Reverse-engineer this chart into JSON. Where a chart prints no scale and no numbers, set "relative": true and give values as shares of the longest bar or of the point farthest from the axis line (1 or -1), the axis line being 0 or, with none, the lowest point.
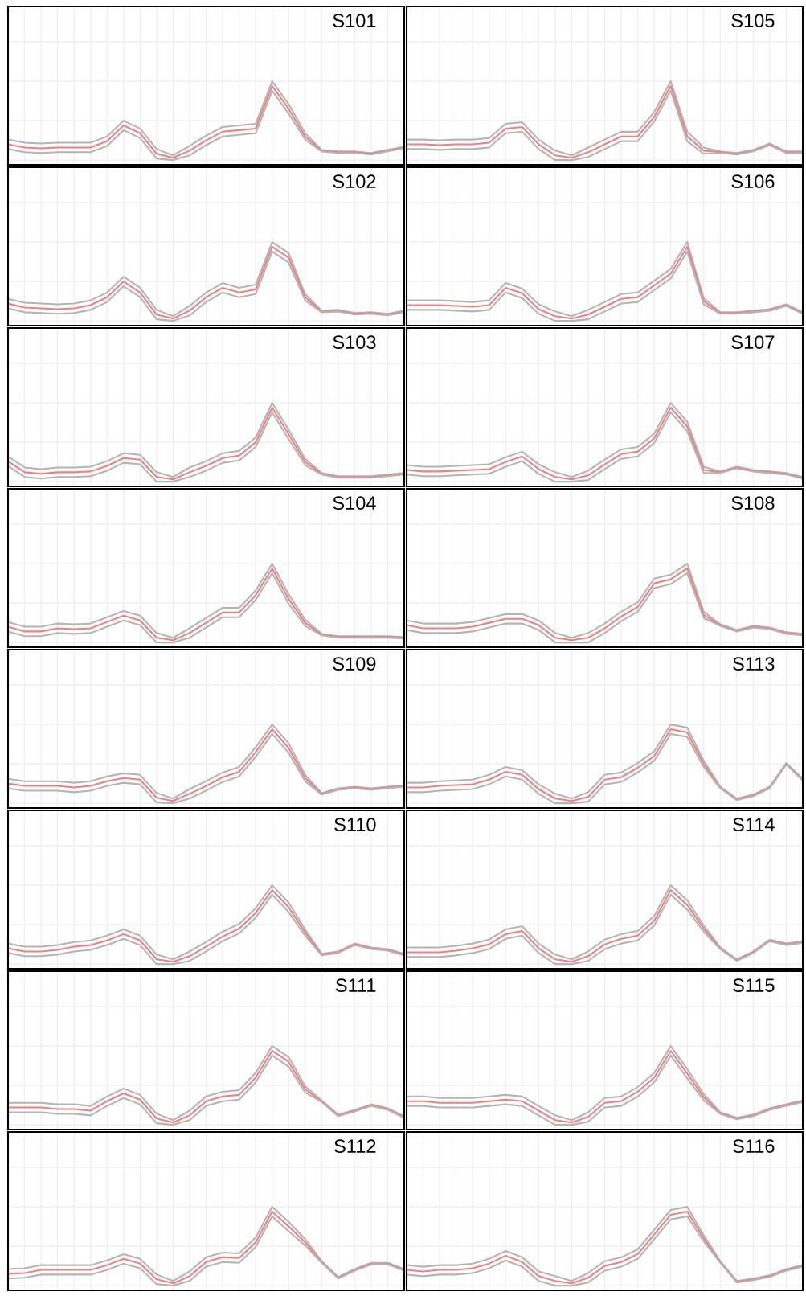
{
  "chart_data": [
    {
      "type": "line",
      "title": "S101",
      "relative": true,
      "grid": true,
      "categories": [
        null,
        null,
        null,
        null,
        null,
        null,
        null,
        null,
        null,
        null,
        null,
        null,
        null,
        null,
        null,
        null,
        null,
        null,
        null,
        null,
        null,
        null,
        null,
        null,
        null
      ],
      "series": [
        {
          "color": "#b4b4b4",
          "values": [
            0.26,
            0.22,
            0.21,
            0.22,
            0.22,
            0.22,
            0.3,
            0.5,
            0.4,
            0.14,
            0.06,
            0.18,
            0.31,
            0.42,
            0.44,
            0.46,
            1,
            0.71,
            0.34,
            0.13,
            0.11,
            0.11,
            0.09,
            0.13,
            0.17
          ]
        },
        {
          "color": "#f08080",
          "values": [
            0.2,
            0.16,
            0.15,
            0.16,
            0.16,
            0.16,
            0.24,
            0.44,
            0.34,
            0.08,
            0.03,
            0.12,
            0.25,
            0.36,
            0.38,
            0.4,
            0.94,
            0.65,
            0.3,
            0.12,
            0.1,
            0.1,
            0.08,
            0.12,
            0.16
          ]
        },
        {
          "color": "#b4b4b4",
          "values": [
            0.14,
            0.1,
            0.09,
            0.1,
            0.1,
            0.1,
            0.18,
            0.38,
            0.28,
            0.02,
            0,
            0.06,
            0.19,
            0.3,
            0.32,
            0.34,
            0.88,
            0.59,
            0.26,
            0.11,
            0.09,
            0.09,
            0.07,
            0.11,
            0.15
          ]
        }
      ]
    },
    {
      "type": "line",
      "title": "S105",
      "relative": true,
      "grid": true,
      "categories": [
        null,
        null,
        null,
        null,
        null,
        null,
        null,
        null,
        null,
        null,
        null,
        null,
        null,
        null,
        null,
        null,
        null,
        null,
        null,
        null,
        null,
        null,
        null,
        null,
        null
      ],
      "series": [
        {
          "color": "#b4b4b4",
          "values": [
            0.26,
            0.26,
            0.25,
            0.26,
            0.26,
            0.28,
            0.46,
            0.48,
            0.26,
            0.12,
            0.06,
            0.16,
            0.26,
            0.36,
            0.36,
            0.61,
            1,
            0.36,
            0.16,
            0.11,
            0.09,
            0.13,
            0.21,
            0.11,
            0.11
          ]
        },
        {
          "color": "#f08080",
          "values": [
            0.2,
            0.2,
            0.19,
            0.2,
            0.2,
            0.22,
            0.4,
            0.42,
            0.2,
            0.06,
            0.03,
            0.1,
            0.2,
            0.3,
            0.3,
            0.55,
            0.94,
            0.3,
            0.12,
            0.1,
            0.08,
            0.12,
            0.2,
            0.1,
            0.1
          ]
        },
        {
          "color": "#b4b4b4",
          "values": [
            0.14,
            0.14,
            0.13,
            0.14,
            0.14,
            0.16,
            0.34,
            0.36,
            0.14,
            0,
            0,
            0.04,
            0.14,
            0.24,
            0.24,
            0.49,
            0.88,
            0.24,
            0.08,
            0.09,
            0.07,
            0.11,
            0.19,
            0.09,
            0.09
          ]
        }
      ]
    },
    {
      "type": "line",
      "title": "S102",
      "relative": true,
      "grid": true,
      "categories": [
        null,
        null,
        null,
        null,
        null,
        null,
        null,
        null,
        null,
        null,
        null,
        null,
        null,
        null,
        null,
        null,
        null,
        null,
        null,
        null,
        null,
        null,
        null,
        null,
        null
      ],
      "series": [
        {
          "color": "#b4b4b4",
          "values": [
            0.28,
            0.23,
            0.22,
            0.21,
            0.22,
            0.26,
            0.36,
            0.56,
            0.42,
            0.14,
            0.06,
            0.19,
            0.36,
            0.48,
            0.42,
            0.46,
            1,
            0.86,
            0.34,
            0.13,
            0.14,
            0.1,
            0.11,
            0.09,
            0.13
          ]
        },
        {
          "color": "#f08080",
          "values": [
            0.22,
            0.17,
            0.16,
            0.15,
            0.16,
            0.2,
            0.3,
            0.5,
            0.36,
            0.08,
            0.03,
            0.13,
            0.3,
            0.42,
            0.36,
            0.4,
            0.94,
            0.8,
            0.3,
            0.12,
            0.13,
            0.09,
            0.1,
            0.08,
            0.12
          ]
        },
        {
          "color": "#b4b4b4",
          "values": [
            0.16,
            0.11,
            0.1,
            0.09,
            0.1,
            0.14,
            0.24,
            0.44,
            0.3,
            0.02,
            0,
            0.07,
            0.24,
            0.36,
            0.3,
            0.34,
            0.88,
            0.74,
            0.26,
            0.11,
            0.12,
            0.08,
            0.09,
            0.07,
            0.11
          ]
        }
      ]
    },
    {
      "type": "line",
      "title": "S106",
      "relative": true,
      "grid": true,
      "categories": [
        null,
        null,
        null,
        null,
        null,
        null,
        null,
        null,
        null,
        null,
        null,
        null,
        null,
        null,
        null,
        null,
        null,
        null,
        null,
        null,
        null,
        null,
        null,
        null,
        null
      ],
      "series": [
        {
          "color": "#b4b4b4",
          "values": [
            0.26,
            0.26,
            0.26,
            0.25,
            0.24,
            0.26,
            0.48,
            0.41,
            0.21,
            0.12,
            0.06,
            0.14,
            0.24,
            0.34,
            0.36,
            0.51,
            0.66,
            1,
            0.29,
            0.11,
            0.11,
            0.13,
            0.15,
            0.21,
            0.11
          ]
        },
        {
          "color": "#f08080",
          "values": [
            0.2,
            0.2,
            0.2,
            0.19,
            0.18,
            0.2,
            0.42,
            0.35,
            0.15,
            0.06,
            0.03,
            0.08,
            0.18,
            0.28,
            0.3,
            0.45,
            0.6,
            0.94,
            0.25,
            0.1,
            0.1,
            0.12,
            0.14,
            0.2,
            0.1
          ]
        },
        {
          "color": "#b4b4b4",
          "values": [
            0.14,
            0.14,
            0.14,
            0.13,
            0.12,
            0.14,
            0.36,
            0.29,
            0.09,
            0,
            0,
            0.02,
            0.12,
            0.22,
            0.24,
            0.39,
            0.54,
            0.88,
            0.21,
            0.09,
            0.09,
            0.11,
            0.13,
            0.19,
            0.09
          ]
        }
      ]
    },
    {
      "type": "line",
      "title": "S103",
      "relative": true,
      "grid": true,
      "categories": [
        null,
        null,
        null,
        null,
        null,
        null,
        null,
        null,
        null,
        null,
        null,
        null,
        null,
        null,
        null,
        null,
        null,
        null,
        null,
        null,
        null,
        null,
        null,
        null,
        null
      ],
      "series": [
        {
          "color": "#b4b4b4",
          "values": [
            0.32,
            0.18,
            0.16,
            0.18,
            0.18,
            0.19,
            0.26,
            0.36,
            0.34,
            0.12,
            0.06,
            0.18,
            0.26,
            0.36,
            0.39,
            0.56,
            1,
            0.66,
            0.29,
            0.11,
            0.07,
            0.07,
            0.07,
            0.09,
            0.11
          ]
        },
        {
          "color": "#f08080",
          "values": [
            0.26,
            0.12,
            0.1,
            0.12,
            0.12,
            0.13,
            0.2,
            0.3,
            0.28,
            0.06,
            0.03,
            0.12,
            0.2,
            0.3,
            0.33,
            0.5,
            0.94,
            0.6,
            0.25,
            0.1,
            0.06,
            0.06,
            0.06,
            0.08,
            0.1
          ]
        },
        {
          "color": "#b4b4b4",
          "values": [
            0.2,
            0.06,
            0.04,
            0.06,
            0.06,
            0.07,
            0.14,
            0.24,
            0.22,
            0,
            0,
            0.06,
            0.14,
            0.24,
            0.27,
            0.44,
            0.88,
            0.54,
            0.21,
            0.09,
            0.05,
            0.05,
            0.05,
            0.07,
            0.09
          ]
        }
      ]
    },
    {
      "type": "line",
      "title": "S107",
      "relative": true,
      "grid": true,
      "categories": [
        null,
        null,
        null,
        null,
        null,
        null,
        null,
        null,
        null,
        null,
        null,
        null,
        null,
        null,
        null,
        null,
        null,
        null,
        null,
        null,
        null,
        null,
        null,
        null,
        null
      ],
      "series": [
        {
          "color": "#b4b4b4",
          "values": [
            0.21,
            0.19,
            0.19,
            0.2,
            0.21,
            0.22,
            0.31,
            0.38,
            0.22,
            0.12,
            0.06,
            0.14,
            0.28,
            0.41,
            0.44,
            0.61,
            1,
            0.76,
            0.19,
            0.13,
            0.19,
            0.15,
            0.13,
            0.11,
            0.06
          ]
        },
        {
          "color": "#f08080",
          "values": [
            0.15,
            0.13,
            0.13,
            0.14,
            0.15,
            0.16,
            0.25,
            0.32,
            0.16,
            0.06,
            0.03,
            0.08,
            0.22,
            0.35,
            0.38,
            0.55,
            0.94,
            0.7,
            0.15,
            0.12,
            0.18,
            0.14,
            0.12,
            0.1,
            0.05
          ]
        },
        {
          "color": "#b4b4b4",
          "values": [
            0.09,
            0.07,
            0.07,
            0.08,
            0.09,
            0.1,
            0.19,
            0.26,
            0.1,
            0,
            0,
            0.02,
            0.16,
            0.29,
            0.32,
            0.49,
            0.88,
            0.64,
            0.11,
            0.11,
            0.17,
            0.13,
            0.11,
            0.09,
            0.04
          ]
        }
      ]
    },
    {
      "type": "line",
      "title": "S104",
      "relative": true,
      "grid": true,
      "categories": [
        null,
        null,
        null,
        null,
        null,
        null,
        null,
        null,
        null,
        null,
        null,
        null,
        null,
        null,
        null,
        null,
        null,
        null,
        null,
        null,
        null,
        null,
        null,
        null,
        null
      ],
      "series": [
        {
          "color": "#b4b4b4",
          "values": [
            0.26,
            0.2,
            0.2,
            0.24,
            0.23,
            0.24,
            0.32,
            0.4,
            0.34,
            0.12,
            0.06,
            0.18,
            0.31,
            0.44,
            0.44,
            0.66,
            1,
            0.61,
            0.29,
            0.11,
            0.08,
            0.08,
            0.08,
            0.08,
            0.07
          ]
        },
        {
          "color": "#f08080",
          "values": [
            0.2,
            0.14,
            0.14,
            0.18,
            0.17,
            0.18,
            0.26,
            0.34,
            0.28,
            0.06,
            0.03,
            0.12,
            0.25,
            0.38,
            0.38,
            0.6,
            0.94,
            0.55,
            0.25,
            0.1,
            0.07,
            0.07,
            0.07,
            0.07,
            0.06
          ]
        },
        {
          "color": "#b4b4b4",
          "values": [
            0.14,
            0.08,
            0.08,
            0.12,
            0.11,
            0.12,
            0.2,
            0.28,
            0.22,
            0,
            0,
            0.06,
            0.19,
            0.32,
            0.32,
            0.54,
            0.88,
            0.49,
            0.21,
            0.09,
            0.06,
            0.06,
            0.06,
            0.06,
            0.05
          ]
        }
      ]
    },
    {
      "type": "line",
      "title": "S108",
      "relative": true,
      "grid": true,
      "categories": [
        null,
        null,
        null,
        null,
        null,
        null,
        null,
        null,
        null,
        null,
        null,
        null,
        null,
        null,
        null,
        null,
        null,
        null,
        null,
        null,
        null,
        null,
        null,
        null,
        null
      ],
      "series": [
        {
          "color": "#b4b4b4",
          "values": [
            0.28,
            0.24,
            0.24,
            0.24,
            0.26,
            0.31,
            0.36,
            0.36,
            0.28,
            0.12,
            0.06,
            0.12,
            0.24,
            0.39,
            0.51,
            0.81,
            0.86,
            1,
            0.39,
            0.23,
            0.16,
            0.21,
            0.19,
            0.13,
            0.11
          ]
        },
        {
          "color": "#f08080",
          "values": [
            0.22,
            0.18,
            0.18,
            0.18,
            0.2,
            0.25,
            0.3,
            0.3,
            0.22,
            0.06,
            0.03,
            0.06,
            0.18,
            0.33,
            0.45,
            0.75,
            0.8,
            0.94,
            0.35,
            0.22,
            0.15,
            0.2,
            0.18,
            0.12,
            0.1
          ]
        },
        {
          "color": "#b4b4b4",
          "values": [
            0.16,
            0.12,
            0.12,
            0.12,
            0.14,
            0.19,
            0.24,
            0.24,
            0.16,
            0,
            0,
            0,
            0.12,
            0.27,
            0.39,
            0.69,
            0.74,
            0.88,
            0.31,
            0.21,
            0.14,
            0.19,
            0.17,
            0.11,
            0.09
          ]
        }
      ]
    },
    {
      "type": "line",
      "title": "S109",
      "relative": true,
      "grid": true,
      "categories": [
        null,
        null,
        null,
        null,
        null,
        null,
        null,
        null,
        null,
        null,
        null,
        null,
        null,
        null,
        null,
        null,
        null,
        null,
        null,
        null,
        null,
        null,
        null,
        null,
        null
      ],
      "series": [
        {
          "color": "#b4b4b4",
          "values": [
            0.31,
            0.28,
            0.28,
            0.28,
            0.26,
            0.28,
            0.34,
            0.38,
            0.36,
            0.13,
            0.06,
            0.18,
            0.28,
            0.39,
            0.46,
            0.71,
            1,
            0.76,
            0.36,
            0.13,
            0.19,
            0.21,
            0.19,
            0.21,
            0.23
          ]
        },
        {
          "color": "#f08080",
          "values": [
            0.25,
            0.22,
            0.22,
            0.22,
            0.2,
            0.22,
            0.28,
            0.32,
            0.3,
            0.07,
            0.03,
            0.12,
            0.22,
            0.33,
            0.4,
            0.65,
            0.94,
            0.7,
            0.32,
            0.12,
            0.18,
            0.2,
            0.18,
            0.2,
            0.22
          ]
        },
        {
          "color": "#b4b4b4",
          "values": [
            0.19,
            0.16,
            0.16,
            0.16,
            0.14,
            0.16,
            0.22,
            0.26,
            0.24,
            0.01,
            0,
            0.06,
            0.16,
            0.27,
            0.34,
            0.59,
            0.88,
            0.64,
            0.28,
            0.11,
            0.17,
            0.19,
            0.17,
            0.19,
            0.21
          ]
        }
      ]
    },
    {
      "type": "line",
      "title": "S113",
      "relative": true,
      "grid": true,
      "categories": [
        null,
        null,
        null,
        null,
        null,
        null,
        null,
        null,
        null,
        null,
        null,
        null,
        null,
        null,
        null,
        null,
        null,
        null,
        null,
        null,
        null,
        null,
        null,
        null,
        null
      ],
      "series": [
        {
          "color": "#b4b4b4",
          "values": [
            0.26,
            0.26,
            0.28,
            0.29,
            0.3,
            0.36,
            0.46,
            0.42,
            0.24,
            0.12,
            0.06,
            0.14,
            0.36,
            0.39,
            0.51,
            0.66,
            1,
            0.96,
            0.54,
            0.21,
            0.06,
            0.11,
            0.21,
            0.51,
            0.31
          ]
        },
        {
          "color": "#f08080",
          "values": [
            0.2,
            0.2,
            0.22,
            0.23,
            0.24,
            0.3,
            0.4,
            0.36,
            0.18,
            0.06,
            0.03,
            0.08,
            0.3,
            0.33,
            0.45,
            0.6,
            0.94,
            0.9,
            0.5,
            0.2,
            0.05,
            0.1,
            0.2,
            0.5,
            0.3
          ]
        },
        {
          "color": "#b4b4b4",
          "values": [
            0.14,
            0.14,
            0.16,
            0.17,
            0.18,
            0.24,
            0.34,
            0.3,
            0.12,
            0,
            0,
            0.02,
            0.24,
            0.27,
            0.39,
            0.54,
            0.88,
            0.84,
            0.46,
            0.19,
            0.04,
            0.09,
            0.19,
            0.49,
            0.29
          ]
        }
      ]
    },
    {
      "type": "line",
      "title": "S110",
      "relative": true,
      "grid": true,
      "categories": [
        null,
        null,
        null,
        null,
        null,
        null,
        null,
        null,
        null,
        null,
        null,
        null,
        null,
        null,
        null,
        null,
        null,
        null,
        null,
        null,
        null,
        null,
        null,
        null,
        null
      ],
      "series": [
        {
          "color": "#b4b4b4",
          "values": [
            0.26,
            0.22,
            0.22,
            0.24,
            0.28,
            0.3,
            0.36,
            0.44,
            0.36,
            0.12,
            0.06,
            0.16,
            0.28,
            0.41,
            0.51,
            0.71,
            1,
            0.78,
            0.44,
            0.13,
            0.16,
            0.26,
            0.21,
            0.19,
            0.13
          ]
        },
        {
          "color": "#f08080",
          "values": [
            0.2,
            0.16,
            0.16,
            0.18,
            0.22,
            0.24,
            0.3,
            0.38,
            0.3,
            0.06,
            0.03,
            0.1,
            0.22,
            0.35,
            0.45,
            0.65,
            0.94,
            0.72,
            0.4,
            0.12,
            0.15,
            0.25,
            0.2,
            0.18,
            0.12
          ]
        },
        {
          "color": "#b4b4b4",
          "values": [
            0.14,
            0.1,
            0.1,
            0.12,
            0.16,
            0.18,
            0.24,
            0.32,
            0.24,
            0,
            0,
            0.04,
            0.16,
            0.29,
            0.39,
            0.59,
            0.88,
            0.66,
            0.36,
            0.11,
            0.14,
            0.24,
            0.19,
            0.17,
            0.11
          ]
        }
      ]
    },
    {
      "type": "line",
      "title": "S114",
      "relative": true,
      "grid": true,
      "categories": [
        null,
        null,
        null,
        null,
        null,
        null,
        null,
        null,
        null,
        null,
        null,
        null,
        null,
        null,
        null,
        null,
        null,
        null,
        null,
        null,
        null,
        null,
        null,
        null,
        null
      ],
      "series": [
        {
          "color": "#b4b4b4",
          "values": [
            0.21,
            0.21,
            0.21,
            0.23,
            0.26,
            0.31,
            0.44,
            0.48,
            0.26,
            0.12,
            0.06,
            0.16,
            0.31,
            0.38,
            0.42,
            0.61,
            1,
            0.81,
            0.49,
            0.21,
            0.06,
            0.16,
            0.31,
            0.26,
            0.29
          ]
        },
        {
          "color": "#f08080",
          "values": [
            0.15,
            0.15,
            0.15,
            0.17,
            0.2,
            0.25,
            0.38,
            0.42,
            0.2,
            0.06,
            0.03,
            0.1,
            0.25,
            0.32,
            0.36,
            0.55,
            0.94,
            0.75,
            0.45,
            0.2,
            0.05,
            0.15,
            0.3,
            0.25,
            0.28
          ]
        },
        {
          "color": "#b4b4b4",
          "values": [
            0.09,
            0.09,
            0.09,
            0.11,
            0.14,
            0.19,
            0.32,
            0.36,
            0.14,
            0,
            0,
            0.04,
            0.19,
            0.26,
            0.3,
            0.49,
            0.88,
            0.69,
            0.41,
            0.19,
            0.04,
            0.14,
            0.29,
            0.24,
            0.27
          ]
        }
      ]
    },
    {
      "type": "line",
      "title": "S111",
      "relative": true,
      "grid": true,
      "categories": [
        null,
        null,
        null,
        null,
        null,
        null,
        null,
        null,
        null,
        null,
        null,
        null,
        null,
        null,
        null,
        null,
        null,
        null,
        null,
        null,
        null,
        null,
        null,
        null,
        null
      ],
      "series": [
        {
          "color": "#b4b4b4",
          "values": [
            0.28,
            0.28,
            0.28,
            0.26,
            0.26,
            0.24,
            0.36,
            0.46,
            0.38,
            0.14,
            0.06,
            0.18,
            0.36,
            0.42,
            0.44,
            0.66,
            1,
            0.86,
            0.49,
            0.31,
            0.13,
            0.19,
            0.26,
            0.21,
            0.11
          ]
        },
        {
          "color": "#f08080",
          "values": [
            0.22,
            0.22,
            0.22,
            0.2,
            0.2,
            0.18,
            0.3,
            0.4,
            0.32,
            0.08,
            0.03,
            0.12,
            0.3,
            0.36,
            0.38,
            0.6,
            0.94,
            0.8,
            0.45,
            0.3,
            0.12,
            0.18,
            0.25,
            0.2,
            0.1
          ]
        },
        {
          "color": "#b4b4b4",
          "values": [
            0.16,
            0.16,
            0.16,
            0.14,
            0.14,
            0.12,
            0.24,
            0.34,
            0.26,
            0.02,
            0,
            0.06,
            0.24,
            0.3,
            0.32,
            0.54,
            0.88,
            0.74,
            0.41,
            0.29,
            0.11,
            0.17,
            0.24,
            0.19,
            0.09
          ]
        }
      ]
    },
    {
      "type": "line",
      "title": "S115",
      "relative": true,
      "grid": true,
      "categories": [
        null,
        null,
        null,
        null,
        null,
        null,
        null,
        null,
        null,
        null,
        null,
        null,
        null,
        null,
        null,
        null,
        null,
        null,
        null,
        null,
        null,
        null,
        null,
        null,
        null
      ],
      "series": [
        {
          "color": "#b4b4b4",
          "values": [
            0.36,
            0.36,
            0.34,
            0.34,
            0.34,
            0.36,
            0.38,
            0.36,
            0.24,
            0.12,
            0.06,
            0.16,
            0.34,
            0.36,
            0.48,
            0.66,
            1,
            0.71,
            0.39,
            0.16,
            0.09,
            0.13,
            0.21,
            0.26,
            0.31
          ]
        },
        {
          "color": "#f08080",
          "values": [
            0.3,
            0.3,
            0.28,
            0.28,
            0.28,
            0.3,
            0.32,
            0.3,
            0.18,
            0.06,
            0.03,
            0.1,
            0.28,
            0.3,
            0.42,
            0.6,
            0.94,
            0.65,
            0.35,
            0.15,
            0.08,
            0.12,
            0.2,
            0.25,
            0.3
          ]
        },
        {
          "color": "#b4b4b4",
          "values": [
            0.24,
            0.24,
            0.22,
            0.22,
            0.22,
            0.24,
            0.26,
            0.24,
            0.12,
            0,
            0,
            0.04,
            0.22,
            0.24,
            0.36,
            0.54,
            0.88,
            0.59,
            0.31,
            0.14,
            0.07,
            0.11,
            0.19,
            0.24,
            0.29
          ]
        }
      ]
    },
    {
      "type": "line",
      "title": "S112",
      "relative": true,
      "grid": true,
      "categories": [
        null,
        null,
        null,
        null,
        null,
        null,
        null,
        null,
        null,
        null,
        null,
        null,
        null,
        null,
        null,
        null,
        null,
        null,
        null,
        null,
        null,
        null,
        null,
        null,
        null
      ],
      "series": [
        {
          "color": "#b4b4b4",
          "values": [
            0.21,
            0.22,
            0.26,
            0.26,
            0.26,
            0.26,
            0.32,
            0.4,
            0.34,
            0.14,
            0.06,
            0.18,
            0.36,
            0.42,
            0.41,
            0.61,
            1,
            0.81,
            0.59,
            0.31,
            0.11,
            0.21,
            0.29,
            0.29,
            0.21
          ]
        },
        {
          "color": "#f08080",
          "values": [
            0.15,
            0.16,
            0.2,
            0.2,
            0.2,
            0.2,
            0.26,
            0.34,
            0.28,
            0.08,
            0.03,
            0.12,
            0.3,
            0.36,
            0.35,
            0.55,
            0.94,
            0.75,
            0.55,
            0.3,
            0.1,
            0.2,
            0.28,
            0.28,
            0.2
          ]
        },
        {
          "color": "#b4b4b4",
          "values": [
            0.09,
            0.1,
            0.14,
            0.14,
            0.14,
            0.14,
            0.2,
            0.28,
            0.22,
            0.02,
            0,
            0.06,
            0.24,
            0.3,
            0.29,
            0.49,
            0.88,
            0.69,
            0.51,
            0.29,
            0.09,
            0.19,
            0.27,
            0.27,
            0.19
          ]
        }
      ]
    },
    {
      "type": "line",
      "title": "S116",
      "relative": true,
      "grid": true,
      "categories": [
        null,
        null,
        null,
        null,
        null,
        null,
        null,
        null,
        null,
        null,
        null,
        null,
        null,
        null,
        null,
        null,
        null,
        null,
        null,
        null,
        null,
        null,
        null,
        null,
        null
      ],
      "series": [
        {
          "color": "#b4b4b4",
          "values": [
            0.26,
            0.24,
            0.26,
            0.26,
            0.28,
            0.34,
            0.44,
            0.36,
            0.18,
            0.12,
            0.06,
            0.16,
            0.31,
            0.36,
            0.46,
            0.71,
            0.96,
            1,
            0.64,
            0.31,
            0.06,
            0.09,
            0.13,
            0.21,
            0.26
          ]
        },
        {
          "color": "#f08080",
          "values": [
            0.2,
            0.18,
            0.2,
            0.2,
            0.22,
            0.28,
            0.38,
            0.3,
            0.12,
            0.06,
            0.03,
            0.1,
            0.25,
            0.3,
            0.4,
            0.65,
            0.9,
            0.94,
            0.6,
            0.3,
            0.05,
            0.08,
            0.12,
            0.2,
            0.25
          ]
        },
        {
          "color": "#b4b4b4",
          "values": [
            0.14,
            0.12,
            0.14,
            0.14,
            0.16,
            0.22,
            0.32,
            0.24,
            0.06,
            0,
            0,
            0.04,
            0.19,
            0.24,
            0.34,
            0.59,
            0.84,
            0.88,
            0.56,
            0.29,
            0.04,
            0.07,
            0.11,
            0.19,
            0.24
          ]
        }
      ]
    }
  ]
}
